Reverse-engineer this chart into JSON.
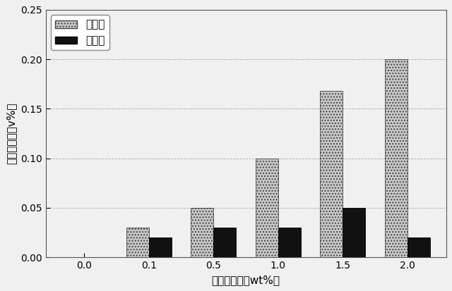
{
  "categories": [
    "0.0",
    "0.1",
    "0.5",
    "1.0",
    "1.5",
    "2.0"
  ],
  "x_positions": [
    0,
    1,
    2,
    3,
    4,
    5
  ],
  "x_labels": [
    "0.0",
    "0.1",
    "0.5",
    "1.0",
    "1.5",
    "2.0"
  ],
  "live_yeast": [
    0.0,
    0.03,
    0.05,
    0.1,
    0.168,
    0.2
  ],
  "dead_yeast": [
    0.0,
    0.02,
    0.03,
    0.03,
    0.05,
    0.02
  ],
  "live_color": "#c8c8c8",
  "dead_color": "#111111",
  "live_hatch": "....",
  "live_label": "生酵母",
  "dead_label": "死酵母",
  "xlabel": "酵母添加率（wt%）",
  "ylabel": "アルコール（v%）",
  "ylim": [
    0.0,
    0.25
  ],
  "yticks": [
    0.0,
    0.05,
    0.1,
    0.15,
    0.2,
    0.25
  ],
  "bar_width": 0.35,
  "background_color": "#f0f0f0",
  "plot_bg_color": "#f0f0f0",
  "grid_color": "#aaaaaa",
  "label_fontsize": 11,
  "tick_fontsize": 10,
  "legend_fontsize": 11
}
